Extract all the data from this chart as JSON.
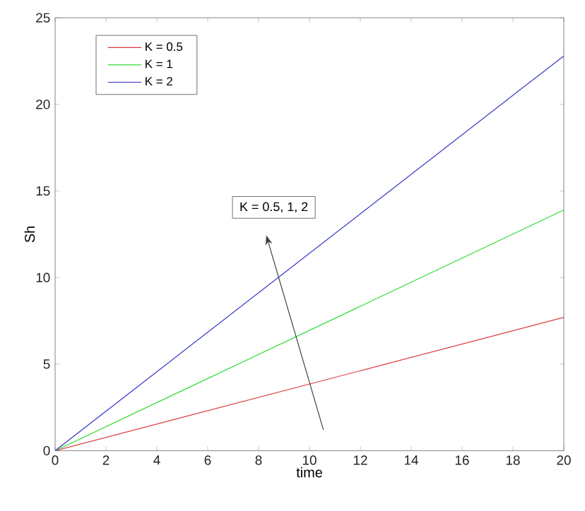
{
  "chart_data": {
    "type": "line",
    "xlabel": "time",
    "ylabel": "Sh",
    "x": [
      0,
      20
    ],
    "series": [
      {
        "name": "K = 0.5",
        "color": "#d9383a",
        "values": [
          0,
          7.7
        ]
      },
      {
        "name": "K = 1",
        "color": "#33dd33",
        "values": [
          0,
          13.9
        ]
      },
      {
        "name": "K = 2",
        "color": "#3333cc",
        "values": [
          0,
          22.8
        ]
      }
    ],
    "xlim": [
      0,
      20
    ],
    "ylim": [
      0,
      25
    ],
    "xticks": [
      0,
      2,
      4,
      6,
      8,
      10,
      12,
      14,
      16,
      18,
      20
    ],
    "yticks": [
      0,
      5,
      10,
      15,
      20,
      25
    ],
    "legend": "top left",
    "annotations": [
      "K = 0.5, 1, 2"
    ]
  }
}
